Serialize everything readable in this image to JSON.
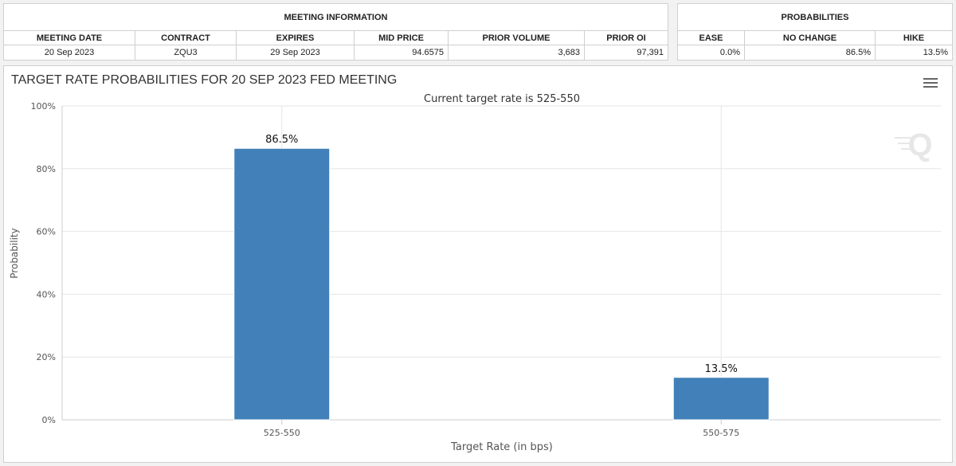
{
  "meeting_info": {
    "header": "MEETING INFORMATION",
    "columns": [
      "MEETING DATE",
      "CONTRACT",
      "EXPIRES",
      "MID PRICE",
      "PRIOR VOLUME",
      "PRIOR OI"
    ],
    "row": [
      "20 Sep 2023",
      "ZQU3",
      "29 Sep 2023",
      "94.6575",
      "3,683",
      "97,391"
    ]
  },
  "probabilities": {
    "header": "PROBABILITIES",
    "columns": [
      "EASE",
      "NO CHANGE",
      "HIKE"
    ],
    "row": [
      "0.0%",
      "86.5%",
      "13.5%"
    ]
  },
  "menu_icon": "hamburger-menu-icon",
  "colors": {
    "bar": "#4180b8",
    "grid": "#e6e6e6",
    "title": "#333333"
  },
  "chart_data": {
    "type": "bar",
    "title": "TARGET RATE PROBABILITIES FOR 20 SEP 2023 FED MEETING",
    "subtitle": "Current target rate is 525-550",
    "xlabel": "Target Rate (in bps)",
    "ylabel": "Probability",
    "categories": [
      "525-550",
      "550-575"
    ],
    "values": [
      86.5,
      13.5
    ],
    "data_labels": [
      "86.5%",
      "13.5%"
    ],
    "ylim": [
      0,
      100
    ],
    "yticks": [
      0,
      20,
      40,
      60,
      80,
      100
    ],
    "ytick_labels": [
      "0%",
      "20%",
      "40%",
      "60%",
      "80%",
      "100%"
    ],
    "grid": true,
    "legend": "none"
  }
}
